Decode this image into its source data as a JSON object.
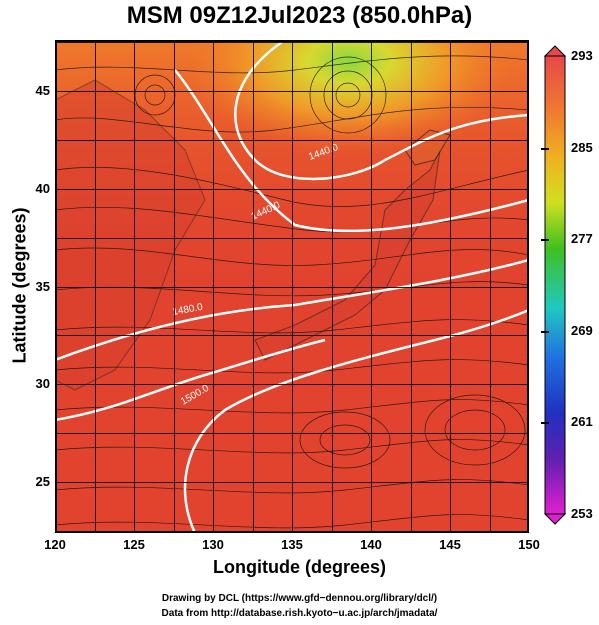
{
  "title": "MSM 09Z12Jul2023 (850.0hPa)",
  "x_axis": {
    "label": "Longitude (degrees)",
    "ticks": [
      "120",
      "125",
      "130",
      "135",
      "140",
      "145",
      "150"
    ],
    "range": [
      120,
      150
    ]
  },
  "y_axis": {
    "label": "Latitude  (degrees)",
    "ticks": [
      "25",
      "30",
      "35",
      "40",
      "45"
    ],
    "range": [
      22.4,
      47.6
    ]
  },
  "colorbar": {
    "labels": [
      "293",
      "285",
      "277",
      "269",
      "261",
      "253"
    ],
    "range": [
      253,
      293
    ],
    "colors": [
      "#e8484a",
      "#f0a020",
      "#e8e020",
      "#30c020",
      "#20c0d0",
      "#2040e0",
      "#6020c0",
      "#e020d0"
    ]
  },
  "contours": [
    {
      "label": "1440.0",
      "color": "#ffffff"
    },
    {
      "label": "1440.0",
      "color": "#ffffff"
    },
    {
      "label": "1480.0",
      "color": "#ffffff"
    },
    {
      "label": "1500.0",
      "color": "#ffffff"
    }
  ],
  "credits": {
    "line1": "Drawing by DCL (https://www.gfd−dennou.org/library/dcl/)",
    "line2": "Data from http://database.rish.kyoto−u.ac.jp/arch/jmadata/"
  }
}
